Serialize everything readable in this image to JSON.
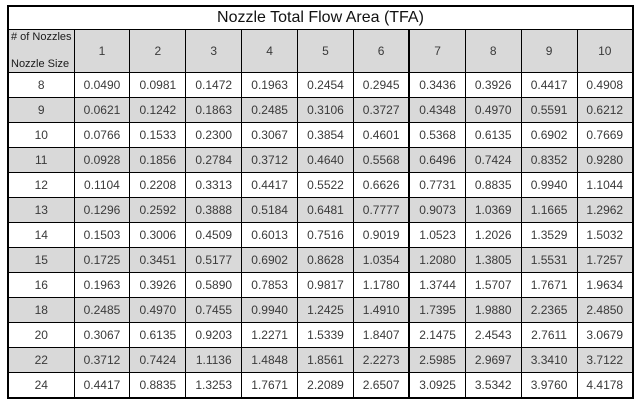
{
  "title": "Nozzle Total Flow Area (TFA)",
  "corner": {
    "top_label": "# of Nozzles",
    "bottom_label": "Nozzle Size"
  },
  "colors": {
    "border": "#000000",
    "header_fill": "#d9d9d9",
    "shaded_row_fill": "#d9d9d9",
    "cell_fill": "#ffffff",
    "text": "#3a3a3a",
    "title_text": "#111111"
  },
  "chart_data": {
    "type": "table",
    "title": "Nozzle Total Flow Area (TFA)",
    "corner_labels": [
      "# of Nozzles",
      "Nozzle Size"
    ],
    "column_headers": [
      "1",
      "2",
      "3",
      "4",
      "5",
      "6",
      "7",
      "8",
      "9",
      "10"
    ],
    "rows": [
      {
        "nozzle_size": "8",
        "values": [
          "0.0490",
          "0.0981",
          "0.1472",
          "0.1963",
          "0.2454",
          "0.2945",
          "0.3436",
          "0.3926",
          "0.4417",
          "0.4908"
        ]
      },
      {
        "nozzle_size": "9",
        "values": [
          "0.0621",
          "0.1242",
          "0.1863",
          "0.2485",
          "0.3106",
          "0.3727",
          "0.4348",
          "0.4970",
          "0.5591",
          "0.6212"
        ]
      },
      {
        "nozzle_size": "10",
        "values": [
          "0.0766",
          "0.1533",
          "0.2300",
          "0.3067",
          "0.3854",
          "0.4601",
          "0.5368",
          "0.6135",
          "0.6902",
          "0.7669"
        ]
      },
      {
        "nozzle_size": "11",
        "values": [
          "0.0928",
          "0.1856",
          "0.2784",
          "0.3712",
          "0.4640",
          "0.5568",
          "0.6496",
          "0.7424",
          "0.8352",
          "0.9280"
        ]
      },
      {
        "nozzle_size": "12",
        "values": [
          "0.1104",
          "0.2208",
          "0.3313",
          "0.4417",
          "0.5522",
          "0.6626",
          "0.7731",
          "0.8835",
          "0.9940",
          "1.1044"
        ]
      },
      {
        "nozzle_size": "13",
        "values": [
          "0.1296",
          "0.2592",
          "0.3888",
          "0.5184",
          "0.6481",
          "0.7777",
          "0.9073",
          "1.0369",
          "1.1665",
          "1.2962"
        ]
      },
      {
        "nozzle_size": "14",
        "values": [
          "0.1503",
          "0.3006",
          "0.4509",
          "0.6013",
          "0.7516",
          "0.9019",
          "1.0523",
          "1.2026",
          "1.3529",
          "1.5032"
        ]
      },
      {
        "nozzle_size": "15",
        "values": [
          "0.1725",
          "0.3451",
          "0.5177",
          "0.6902",
          "0.8628",
          "1.0354",
          "1.2080",
          "1.3805",
          "1.5531",
          "1.7257"
        ]
      },
      {
        "nozzle_size": "16",
        "values": [
          "0.1963",
          "0.3926",
          "0.5890",
          "0.7853",
          "0.9817",
          "1.1780",
          "1.3744",
          "1.5707",
          "1.7671",
          "1.9634"
        ]
      },
      {
        "nozzle_size": "18",
        "values": [
          "0.2485",
          "0.4970",
          "0.7455",
          "0.9940",
          "1.2425",
          "1.4910",
          "1.7395",
          "1.9880",
          "2.2365",
          "2.4850"
        ]
      },
      {
        "nozzle_size": "20",
        "values": [
          "0.3067",
          "0.6135",
          "0.9203",
          "1.2271",
          "1.5339",
          "1.8407",
          "2.1475",
          "2.4543",
          "2.7611",
          "3.0679"
        ]
      },
      {
        "nozzle_size": "22",
        "values": [
          "0.3712",
          "0.7424",
          "1.1136",
          "1.4848",
          "1.8561",
          "2.2273",
          "2.5985",
          "2.9697",
          "3.3410",
          "3.7122"
        ]
      },
      {
        "nozzle_size": "24",
        "values": [
          "0.4417",
          "0.8835",
          "1.3253",
          "1.7671",
          "2.2089",
          "2.6507",
          "3.0925",
          "3.5342",
          "3.9760",
          "4.4178"
        ]
      }
    ]
  }
}
